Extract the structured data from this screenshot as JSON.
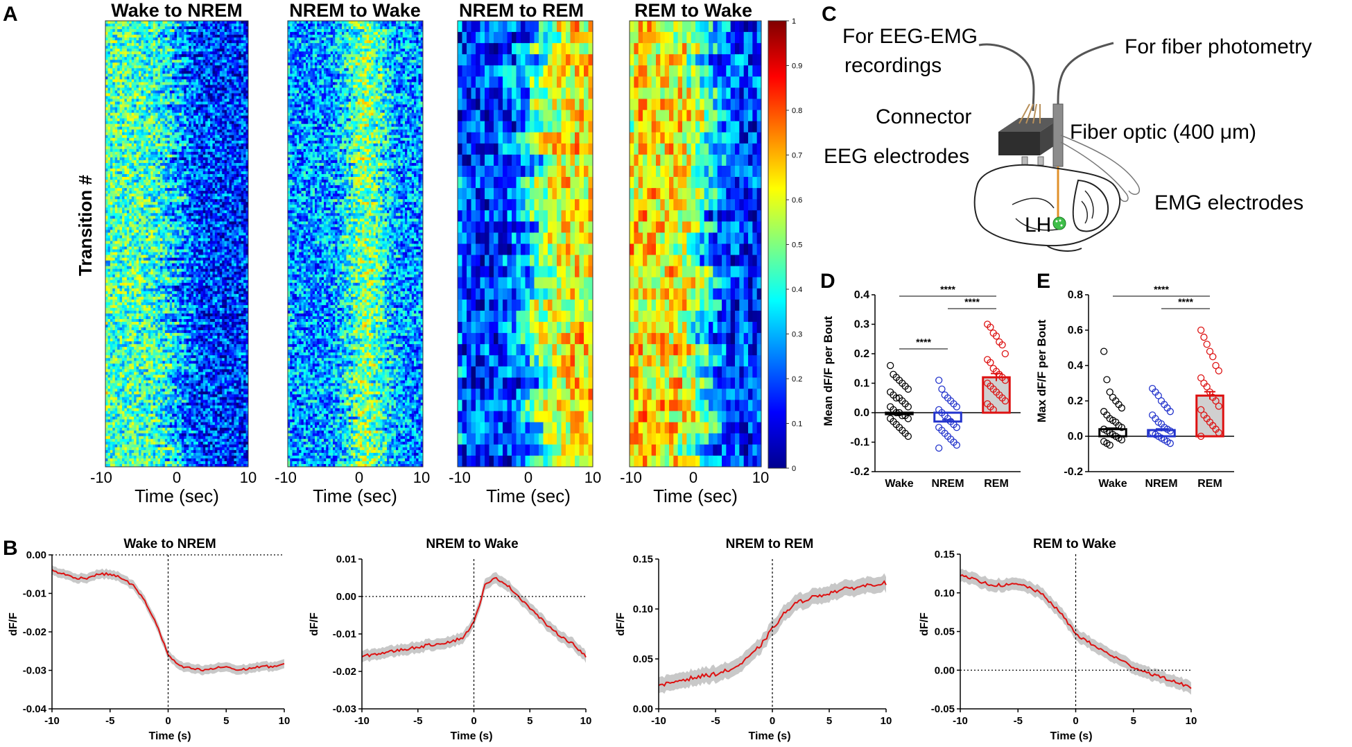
{
  "panel_letters": {
    "a": "A",
    "b": "B",
    "c": "C",
    "d": "D",
    "e": "E"
  },
  "heatmaps": {
    "ylabel": "Transition #",
    "xlabel": "Time (sec)",
    "ticks": [
      "-10",
      "0",
      "10"
    ],
    "panels": [
      {
        "title": "Wake to NREM",
        "rows": 160,
        "profile": "wake_nrem"
      },
      {
        "title": "NREM to Wake",
        "rows": 160,
        "profile": "nrem_wake"
      },
      {
        "title": "NREM to REM",
        "rows": 40,
        "profile": "nrem_rem"
      },
      {
        "title": "REM to Wake",
        "rows": 40,
        "profile": "rem_wake"
      }
    ],
    "colorbar": {
      "ticks": [
        "1",
        "0.9",
        "0.8",
        "0.7",
        "0.6",
        "0.5",
        "0.4",
        "0.3",
        "0.2",
        "0.1",
        "0"
      ],
      "min": 0,
      "max": 1
    }
  },
  "schematic": {
    "label_eeg_emg": "For EEG-EMG",
    "label_recordings": "recordings",
    "label_fiber_photometry": "For fiber photometry",
    "label_connector": "Connector",
    "label_fiber_optic": "Fiber optic (400 μm)",
    "label_eeg_electrodes": "EEG electrodes",
    "label_emg_electrodes": "EMG electrodes",
    "label_lh": "LH"
  },
  "chart_data": [
    {
      "id": "D",
      "type": "bar",
      "categories": [
        "Wake",
        "NREM",
        "REM"
      ],
      "values": [
        -0.005,
        -0.03,
        0.12
      ],
      "sem": [
        0.004,
        0.006,
        0.013
      ],
      "colors": [
        "#000000",
        "#2233cc",
        "#dd1111"
      ],
      "ylabel": "Mean dF/F per Bout",
      "ylim": [
        -0.2,
        0.4
      ],
      "yticks": [
        "0.4",
        "0.3",
        "0.2",
        "0.1",
        "0.0",
        "-0.1",
        "-0.2"
      ],
      "significance": [
        {
          "from": "Wake",
          "to": "REM",
          "label": "****"
        },
        {
          "from": "NREM",
          "to": "REM",
          "label": "****"
        },
        {
          "from": "Wake",
          "to": "NREM",
          "label": "****"
        }
      ],
      "points": {
        "Wake": [
          0.16,
          0.13,
          0.12,
          0.11,
          0.1,
          0.09,
          0.08,
          0.07,
          0.06,
          0.05,
          0.05,
          0.04,
          0.03,
          0.02,
          0.02,
          0.01,
          0.0,
          0.0,
          -0.01,
          -0.01,
          -0.02,
          -0.02,
          -0.03,
          -0.04,
          -0.05,
          -0.06,
          -0.07,
          -0.08
        ],
        "NREM": [
          0.11,
          0.08,
          0.06,
          0.05,
          0.04,
          0.03,
          0.02,
          0.01,
          0.0,
          -0.01,
          -0.02,
          -0.03,
          -0.04,
          -0.05,
          -0.05,
          -0.06,
          -0.07,
          -0.08,
          -0.09,
          -0.1,
          -0.11,
          -0.12
        ],
        "REM": [
          0.3,
          0.29,
          0.27,
          0.26,
          0.24,
          0.23,
          0.2,
          0.18,
          0.17,
          0.15,
          0.14,
          0.13,
          0.12,
          0.11,
          0.1,
          0.09,
          0.08,
          0.07,
          0.06,
          0.05,
          0.04,
          0.03,
          0.02,
          0.01
        ]
      }
    },
    {
      "id": "E",
      "type": "bar",
      "categories": [
        "Wake",
        "NREM",
        "REM"
      ],
      "values": [
        0.04,
        0.035,
        0.23
      ],
      "sem": [
        0.006,
        0.007,
        0.022
      ],
      "colors": [
        "#000000",
        "#2233cc",
        "#dd1111"
      ],
      "ylabel": "Max dF/F per Bout",
      "ylim": [
        -0.2,
        0.8
      ],
      "yticks": [
        "0.8",
        "0.6",
        "0.4",
        "0.2",
        "0.0",
        "-0.2"
      ],
      "significance": [
        {
          "from": "Wake",
          "to": "REM",
          "label": "****"
        },
        {
          "from": "NREM",
          "to": "REM",
          "label": "****"
        }
      ],
      "points": {
        "Wake": [
          0.48,
          0.32,
          0.25,
          0.22,
          0.2,
          0.18,
          0.16,
          0.14,
          0.12,
          0.1,
          0.09,
          0.08,
          0.06,
          0.05,
          0.04,
          0.03,
          0.02,
          0.01,
          0.0,
          -0.01,
          -0.02,
          -0.03,
          -0.04,
          -0.05
        ],
        "NREM": [
          0.27,
          0.25,
          0.23,
          0.2,
          0.18,
          0.16,
          0.14,
          0.12,
          0.1,
          0.08,
          0.07,
          0.05,
          0.04,
          0.03,
          0.02,
          0.01,
          0.0,
          -0.01,
          -0.02,
          -0.03,
          -0.04
        ],
        "REM": [
          0.6,
          0.56,
          0.52,
          0.48,
          0.45,
          0.4,
          0.37,
          0.33,
          0.3,
          0.28,
          0.25,
          0.22,
          0.2,
          0.17,
          0.15,
          0.12,
          0.1,
          0.08,
          0.06,
          0.04,
          0.02,
          0.0
        ]
      }
    },
    {
      "id": "B1",
      "type": "line",
      "title": "Wake to NREM",
      "xlabel": "Time (s)",
      "ylabel": "dF/F",
      "xlim": [
        -10,
        10
      ],
      "ylim": [
        -0.04,
        0.0
      ],
      "xticks": [
        "-10",
        "-5",
        "0",
        "5",
        "10"
      ],
      "yticks": [
        "0.00",
        "-0.01",
        "-0.02",
        "-0.03",
        "-0.04"
      ],
      "x": [
        -10,
        -9,
        -8,
        -7,
        -6,
        -5,
        -4,
        -3,
        -2,
        -1,
        0,
        1,
        2,
        3,
        4,
        5,
        6,
        7,
        8,
        9,
        10
      ],
      "y": [
        -0.004,
        -0.005,
        -0.006,
        -0.006,
        -0.005,
        -0.005,
        -0.006,
        -0.008,
        -0.012,
        -0.018,
        -0.026,
        -0.029,
        -0.0295,
        -0.03,
        -0.0295,
        -0.029,
        -0.03,
        -0.0295,
        -0.029,
        -0.029,
        -0.0285
      ],
      "sem": 0.0012,
      "hline": 0.0
    },
    {
      "id": "B2",
      "type": "line",
      "title": "NREM to Wake",
      "xlabel": "Time (s)",
      "ylabel": "dF/F",
      "xlim": [
        -10,
        10
      ],
      "ylim": [
        -0.03,
        0.01
      ],
      "xticks": [
        "-10",
        "-5",
        "0",
        "5",
        "10"
      ],
      "yticks": [
        "0.01",
        "0.00",
        "-0.01",
        "-0.02",
        "-0.03"
      ],
      "x": [
        -10,
        -9,
        -8,
        -7,
        -6,
        -5,
        -4,
        -3,
        -2,
        -1,
        0,
        1,
        2,
        3,
        4,
        5,
        6,
        7,
        8,
        9,
        10
      ],
      "y": [
        -0.016,
        -0.0155,
        -0.015,
        -0.0145,
        -0.014,
        -0.0135,
        -0.013,
        -0.0125,
        -0.012,
        -0.011,
        -0.007,
        0.003,
        0.005,
        0.003,
        0.0,
        -0.003,
        -0.006,
        -0.009,
        -0.011,
        -0.013,
        -0.016
      ],
      "sem": 0.0015,
      "hline": 0.0
    },
    {
      "id": "B3",
      "type": "line",
      "title": "NREM to REM",
      "xlabel": "Time (s)",
      "ylabel": "dF/F",
      "xlim": [
        -10,
        10
      ],
      "ylim": [
        0.0,
        0.15
      ],
      "xticks": [
        "-10",
        "-5",
        "0",
        "5",
        "10"
      ],
      "yticks": [
        "0.15",
        "0.10",
        "0.05",
        "0.00"
      ],
      "x": [
        -10,
        -9,
        -8,
        -7,
        -6,
        -5,
        -4,
        -3,
        -2,
        -1,
        0,
        1,
        2,
        3,
        4,
        5,
        6,
        7,
        8,
        9,
        10
      ],
      "y": [
        0.022,
        0.026,
        0.029,
        0.031,
        0.033,
        0.035,
        0.038,
        0.043,
        0.052,
        0.064,
        0.08,
        0.095,
        0.105,
        0.11,
        0.113,
        0.116,
        0.119,
        0.121,
        0.123,
        0.125,
        0.126
      ],
      "sem": 0.008,
      "hline": null
    },
    {
      "id": "B4",
      "type": "line",
      "title": "REM to Wake",
      "xlabel": "Time (s)",
      "ylabel": "dF/F",
      "xlim": [
        -10,
        10
      ],
      "ylim": [
        -0.05,
        0.15
      ],
      "xticks": [
        "-10",
        "-5",
        "0",
        "5",
        "10"
      ],
      "yticks": [
        "0.15",
        "0.10",
        "0.05",
        "0.00",
        "-0.05"
      ],
      "x": [
        -10,
        -9,
        -8,
        -7,
        -6,
        -5,
        -4,
        -3,
        -2,
        -1,
        0,
        1,
        2,
        3,
        4,
        5,
        6,
        7,
        8,
        9,
        10
      ],
      "y": [
        0.122,
        0.118,
        0.113,
        0.11,
        0.11,
        0.111,
        0.107,
        0.099,
        0.085,
        0.068,
        0.047,
        0.037,
        0.028,
        0.02,
        0.012,
        0.004,
        -0.002,
        -0.007,
        -0.012,
        -0.017,
        -0.022
      ],
      "sem": 0.008,
      "hline": 0.0
    }
  ]
}
